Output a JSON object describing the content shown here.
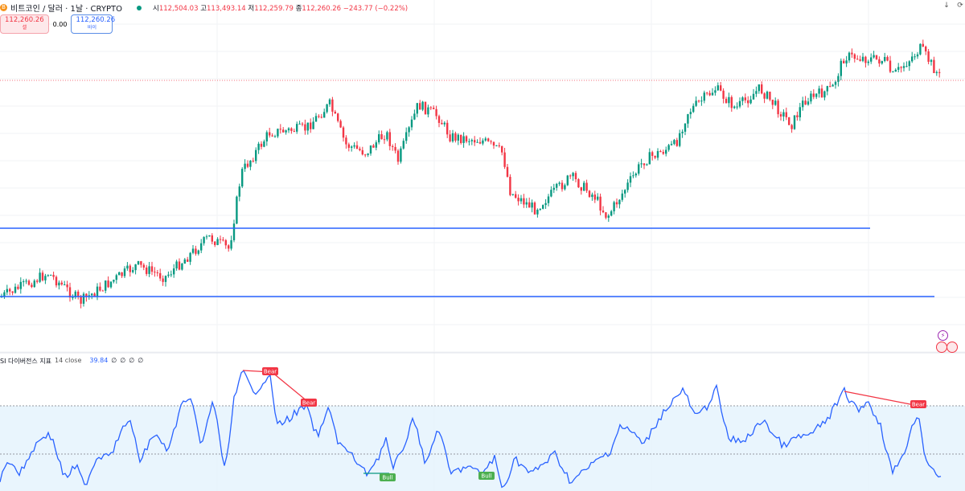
{
  "header": {
    "symbol": "비트코인 / 달러 · 1날 · CRYPTO",
    "open_label": "시",
    "open": "112,504.03",
    "high_label": "고",
    "high": "113,493.14",
    "low_label": "저",
    "low": "112,259.79",
    "close_label": "종",
    "close": "112,260.26",
    "change": "−243.77 (−0.22%)"
  },
  "trade": {
    "sell_price": "112,260.26",
    "sell_label": "셀",
    "spread": "0.00",
    "buy_price": "112,260.26",
    "buy_label": "바이"
  },
  "rsi": {
    "name": "SI 다이버전스 지표",
    "params": "14 close",
    "value": "39.84",
    "extras": [
      "∅",
      "∅",
      "∅",
      "∅"
    ],
    "labels": {
      "bear": "Bear",
      "bull": "Bull"
    }
  },
  "colors": {
    "up": "#089981",
    "down": "#f23645",
    "line": "#2962ff",
    "rsi_band": "#e3f2fd"
  },
  "icons": [
    "download-icon",
    "refresh-icon",
    "lightning-icon",
    "us-flag-icon"
  ]
}
